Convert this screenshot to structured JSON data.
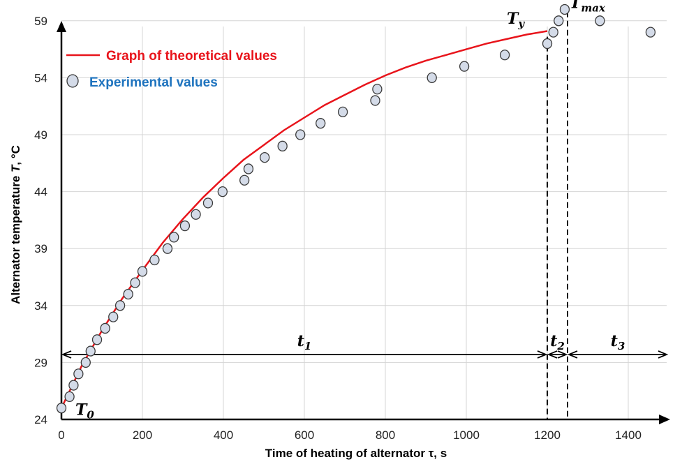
{
  "chart_data": {
    "type": "scatter",
    "xlabel": "Time of heating of alternator τ, s",
    "ylabel_prefix": "Alternator temperature ",
    "ylabel_var": "T",
    "ylabel_suffix": ", °C",
    "xlim": [
      0,
      1500
    ],
    "ylim": [
      24,
      60
    ],
    "x_ticks": [
      0,
      200,
      400,
      600,
      800,
      1000,
      1200,
      1400
    ],
    "y_ticks": [
      24,
      29,
      34,
      39,
      44,
      49,
      54,
      59
    ],
    "grid": true,
    "legend_position": "top-left",
    "series": [
      {
        "name": "Graph of theoretical values",
        "type": "line",
        "color": "#e8141b",
        "x": [
          0,
          50,
          100,
          150,
          200,
          250,
          300,
          350,
          400,
          450,
          500,
          550,
          600,
          650,
          700,
          750,
          800,
          850,
          900,
          950,
          1000,
          1050,
          1100,
          1150,
          1200
        ],
        "y": [
          25.0,
          28.7,
          31.8,
          34.6,
          37.1,
          39.5,
          41.6,
          43.5,
          45.2,
          46.8,
          48.1,
          49.4,
          50.5,
          51.6,
          52.5,
          53.4,
          54.2,
          54.9,
          55.5,
          56.0,
          56.5,
          57.0,
          57.4,
          57.8,
          58.1
        ]
      },
      {
        "name": "Experimental values",
        "type": "scatter",
        "color": "#1e73be",
        "x": [
          0,
          20,
          30,
          42,
          60,
          72,
          88,
          108,
          128,
          145,
          165,
          182,
          200,
          230,
          262,
          278,
          305,
          332,
          362,
          398,
          452,
          462,
          502,
          546,
          590,
          640,
          695,
          775,
          780,
          915,
          995,
          1095,
          1200,
          1215,
          1228,
          1243,
          1330,
          1455
        ],
        "y": [
          25,
          26,
          27,
          28,
          29,
          30,
          31,
          32,
          33,
          34,
          35,
          36,
          37,
          38,
          39,
          40,
          41,
          42,
          43,
          44,
          45,
          46,
          47,
          48,
          49,
          50,
          51,
          52,
          53,
          54,
          55,
          56,
          57,
          58,
          59,
          60,
          59,
          58
        ]
      }
    ],
    "annotations": {
      "T0": {
        "main": "T",
        "sub": "0",
        "x": 0,
        "y": 25
      },
      "Ty": {
        "main": "T",
        "sub": "y",
        "x": 1200,
        "y": 58
      },
      "Tmax": {
        "main": "T",
        "sub": "max",
        "x": 1250,
        "y": 60
      },
      "vlines": [
        1200,
        1250
      ],
      "intervals": [
        {
          "main": "t",
          "sub": "1",
          "from": 0,
          "to": 1200
        },
        {
          "main": "t",
          "sub": "2",
          "from": 1200,
          "to": 1250
        },
        {
          "main": "t",
          "sub": "3",
          "from": 1250,
          "to": 1500
        }
      ],
      "interval_y": 29.7
    }
  }
}
